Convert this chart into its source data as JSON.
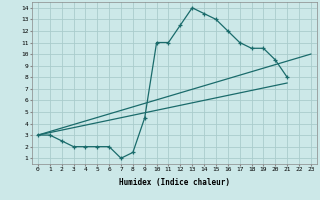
{
  "xlabel": "Humidex (Indice chaleur)",
  "ylabel": "",
  "bg_color": "#cce8e8",
  "grid_color": "#aacccc",
  "line_color": "#1a6b6b",
  "xlim": [
    -0.5,
    23.5
  ],
  "ylim": [
    0.5,
    14.5
  ],
  "xticks": [
    0,
    1,
    2,
    3,
    4,
    5,
    6,
    7,
    8,
    9,
    10,
    11,
    12,
    13,
    14,
    15,
    16,
    17,
    18,
    19,
    20,
    21,
    22,
    23
  ],
  "yticks": [
    1,
    2,
    3,
    4,
    5,
    6,
    7,
    8,
    9,
    10,
    11,
    12,
    13,
    14
  ],
  "curve1_x": [
    0,
    1,
    2,
    3,
    4,
    5,
    6,
    7,
    8,
    9,
    10,
    11,
    12,
    13,
    14,
    15,
    16,
    17,
    18,
    19,
    20,
    21
  ],
  "curve1_y": [
    3.0,
    3.0,
    2.5,
    2.0,
    2.0,
    2.0,
    2.0,
    1.0,
    1.5,
    4.5,
    11.0,
    11.0,
    12.5,
    14.0,
    13.5,
    13.0,
    12.0,
    11.0,
    10.5,
    10.5,
    9.5,
    8.0
  ],
  "curve2_x": [
    0,
    21
  ],
  "curve2_y": [
    3.0,
    7.5
  ],
  "curve3_x": [
    0,
    23
  ],
  "curve3_y": [
    3.0,
    10.0
  ]
}
